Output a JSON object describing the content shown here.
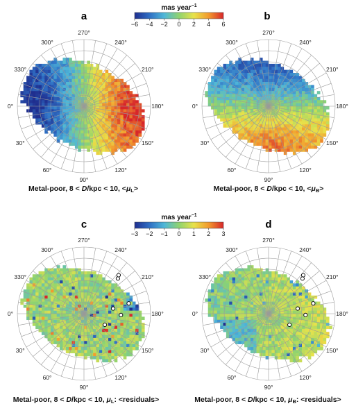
{
  "colorbars": [
    {
      "title": "mas year",
      "title_superscript": "−1",
      "ticks": [
        "−6",
        "−4",
        "−2",
        "0",
        "2",
        "4",
        "6"
      ],
      "range": [
        -6,
        6
      ],
      "colormap": [
        "#1f2e8f",
        "#2f6fc4",
        "#4fb7d8",
        "#8fd36f",
        "#e8e24a",
        "#f29a2e",
        "#d7262a"
      ]
    },
    {
      "title": "mas year",
      "title_superscript": "−1",
      "ticks": [
        "−3",
        "−2",
        "−1",
        "0",
        "1",
        "2",
        "3"
      ],
      "range": [
        -3,
        3
      ],
      "colormap": [
        "#1f2e8f",
        "#2f6fc4",
        "#4fb7d8",
        "#8fd36f",
        "#e8e24a",
        "#f29a2e",
        "#d7262a"
      ]
    }
  ],
  "angle_labels": [
    "270°",
    "240°",
    "210°",
    "180°",
    "150°",
    "120°",
    "90°",
    "60°",
    "30°",
    "0°",
    "330°",
    "300°"
  ],
  "chart_data": [
    {
      "type": "heatmap",
      "projection": "polar",
      "panel_letter": "a",
      "caption": {
        "prefix": "Metal-poor, 8 < ",
        "var": "D",
        "mid": "/kpc < 10, <",
        "mu": "μ",
        "sub": "L",
        "suffix": ">"
      },
      "colorbar": 0,
      "value_range": [
        -6,
        6
      ],
      "pattern": "dipole: negative toward 0°, positive toward 180°",
      "peak_value_mas_yr": 6,
      "sky_extent_deg": 75,
      "marked_points": []
    },
    {
      "type": "heatmap",
      "projection": "polar",
      "panel_letter": "b",
      "caption": {
        "prefix": "Metal-poor, 8 < ",
        "var": "D",
        "mid": "/kpc < 10, <",
        "mu": "μ",
        "sub": "B",
        "suffix": ">"
      },
      "colorbar": 0,
      "value_range": [
        -6,
        6
      ],
      "pattern": "dipole: negative toward 270°, positive toward 90°",
      "peak_value_mas_yr": 5,
      "sky_extent_deg": 75,
      "marked_points": []
    },
    {
      "type": "heatmap",
      "projection": "polar",
      "panel_letter": "c",
      "caption": {
        "prefix": "Metal-poor, 8 < ",
        "var": "D",
        "mid": "/kpc < 10, ",
        "mu": "μ",
        "sub": "L",
        "suffix": ": <residuals>"
      },
      "colorbar": 1,
      "value_range": [
        -3,
        3
      ],
      "pattern": "residuals near zero, strong negative patch near 200°",
      "sky_extent_deg": 75,
      "marked_points": [
        {
          "angle_deg": 226,
          "radius_deg": 66
        },
        {
          "angle_deg": 228,
          "radius_deg": 70
        },
        {
          "angle_deg": 193,
          "radius_deg": 62
        },
        {
          "angle_deg": 190,
          "radius_deg": 40
        },
        {
          "angle_deg": 178,
          "radius_deg": 50
        },
        {
          "angle_deg": 152,
          "radius_deg": 32
        }
      ]
    },
    {
      "type": "heatmap",
      "projection": "polar",
      "panel_letter": "d",
      "caption": {
        "prefix": "Metal-poor, 8 < ",
        "var": "D",
        "mid": "/kpc < 10, ",
        "mu": "μ",
        "sub": "B",
        "suffix": ": <residuals>"
      },
      "colorbar": 1,
      "value_range": [
        -3,
        3
      ],
      "pattern": "residuals near zero, mild negative region toward 45°",
      "sky_extent_deg": 75,
      "marked_points": [
        {
          "angle_deg": 226,
          "radius_deg": 66
        },
        {
          "angle_deg": 228,
          "radius_deg": 70
        },
        {
          "angle_deg": 193,
          "radius_deg": 62
        },
        {
          "angle_deg": 190,
          "radius_deg": 40
        },
        {
          "angle_deg": 178,
          "radius_deg": 50
        },
        {
          "angle_deg": 152,
          "radius_deg": 32
        }
      ]
    }
  ]
}
